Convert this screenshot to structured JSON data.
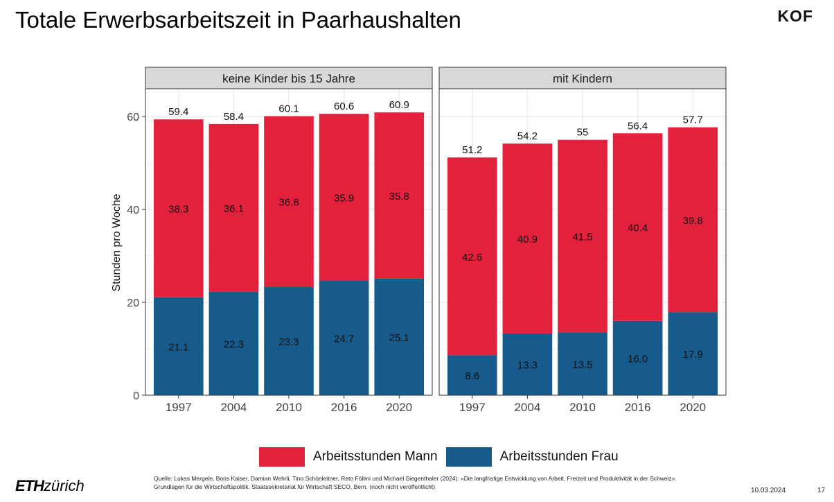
{
  "slide": {
    "title": "Totale Erwerbsarbeitszeit in Paarhaushalten",
    "logo_text": "KOF",
    "source": "Quelle: Lukas Mergele, Boris Kaiser, Damian Wehrli, Tino Schönleitner, Reto Föllmi und Michael Siegenthaler (2024): «Die langfristige Entwicklung von Arbeit, Freizeit und Produktivität in der Schweiz». Grundlagen für die Wirtschaftspolitik. Staatssekretariat für Wirtschaft SECO, Bern. (noch nicht veröffentlicht)",
    "eth_logo_bold": "ETH",
    "eth_logo_light": "zürich",
    "date": "10.03.2024",
    "page_number": "17"
  },
  "colors": {
    "mann": "#e4213c",
    "frau": "#175b8c",
    "panel_grid": "#ebebeb",
    "strip_bg": "#d9d9d9"
  },
  "chart_data": {
    "type": "bar",
    "stacked": true,
    "ylabel": "Stunden pro Woche",
    "ylim": [
      0,
      66
    ],
    "yticks": [
      0,
      20,
      40,
      60
    ],
    "legend_position": "bottom",
    "legend": [
      "Arbeitsstunden Mann",
      "Arbeitsstunden Frau"
    ],
    "facets": [
      {
        "name": "keine Kinder bis 15 Jahre",
        "categories": [
          "1997",
          "2004",
          "2010",
          "2016",
          "2020"
        ],
        "series": [
          {
            "name": "Arbeitsstunden Frau",
            "values": [
              21.1,
              22.3,
              23.3,
              24.7,
              25.1
            ],
            "labels": [
              "21.1",
              "22.3",
              "23.3",
              "24.7",
              "25.1"
            ]
          },
          {
            "name": "Arbeitsstunden Mann",
            "values": [
              38.3,
              36.1,
              36.8,
              35.9,
              35.8
            ],
            "labels": [
              "38.3",
              "36.1",
              "36.8",
              "35.9",
              "35.8"
            ]
          }
        ],
        "totals": [
          59.4,
          58.4,
          60.1,
          60.6,
          60.9
        ],
        "total_labels": [
          "59.4",
          "58.4",
          "60.1",
          "60.6",
          "60.9"
        ]
      },
      {
        "name": "mit Kindern",
        "categories": [
          "1997",
          "2004",
          "2010",
          "2016",
          "2020"
        ],
        "series": [
          {
            "name": "Arbeitsstunden Frau",
            "values": [
              8.6,
              13.3,
              13.5,
              16.0,
              17.9
            ],
            "labels": [
              "8.6",
              "13.3",
              "13.5",
              "16.0",
              "17.9"
            ]
          },
          {
            "name": "Arbeitsstunden Mann",
            "values": [
              42.6,
              40.9,
              41.5,
              40.4,
              39.8
            ],
            "labels": [
              "42.6",
              "40.9",
              "41.5",
              "40.4",
              "39.8"
            ]
          }
        ],
        "totals": [
          51.2,
          54.2,
          55.0,
          56.4,
          57.7
        ],
        "total_labels": [
          "51.2",
          "54.2",
          "55",
          "56.4",
          "57.7"
        ]
      }
    ]
  }
}
